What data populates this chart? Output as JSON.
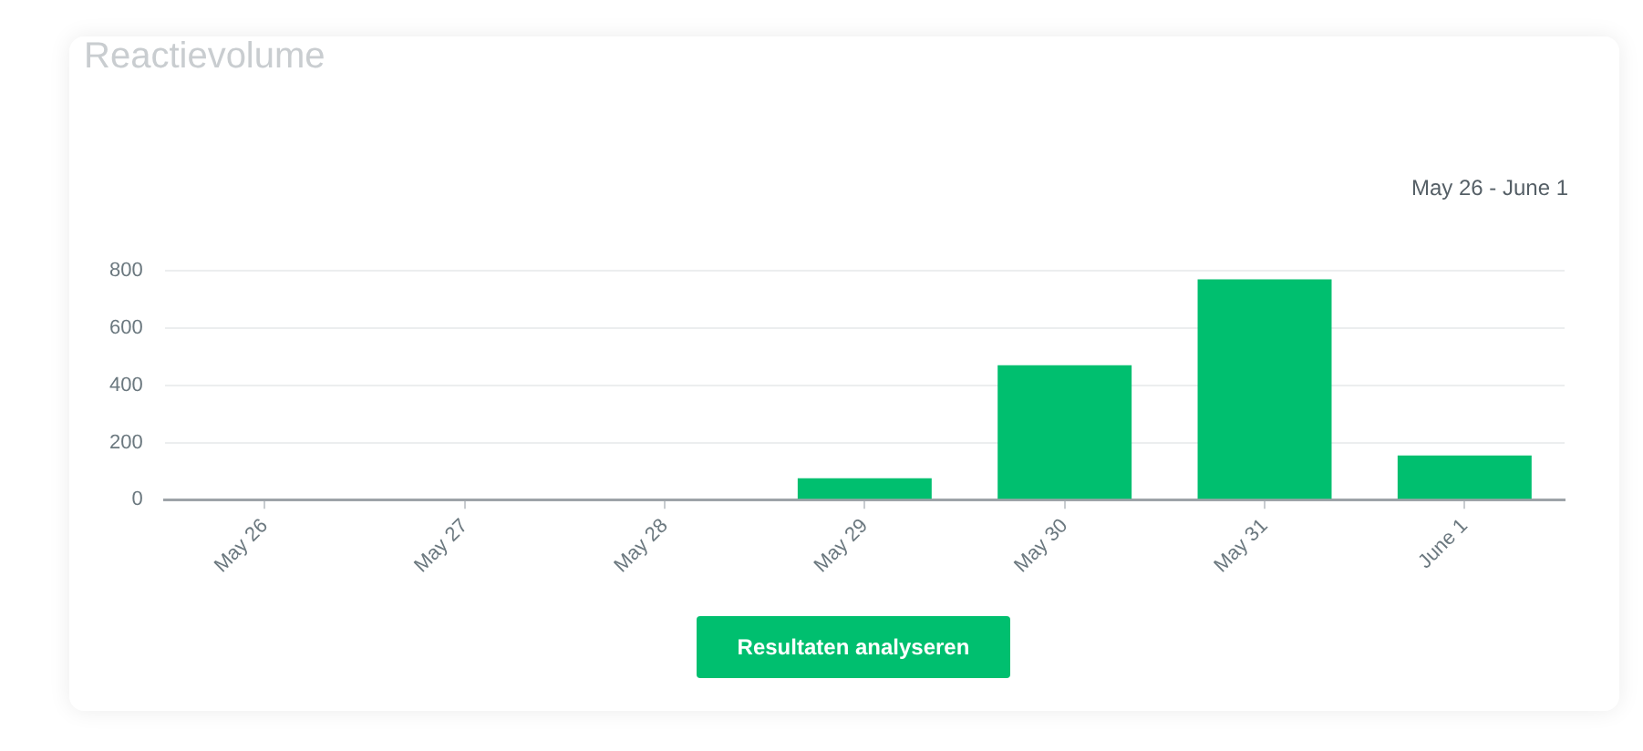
{
  "chart_data": {
    "type": "bar",
    "title": "Reactievolume",
    "subtitle": "May 26 - June 1",
    "categories": [
      "May 26",
      "May 27",
      "May 28",
      "May 29",
      "May 30",
      "May 31",
      "June 1"
    ],
    "values": [
      0,
      0,
      0,
      75,
      470,
      770,
      155
    ],
    "color": "#00bf6f",
    "ylim": [
      0,
      800
    ],
    "yticks": [
      0,
      200,
      400,
      600,
      800
    ],
    "grid": "y",
    "annotations": [
      "Resultaten analyseren"
    ]
  }
}
